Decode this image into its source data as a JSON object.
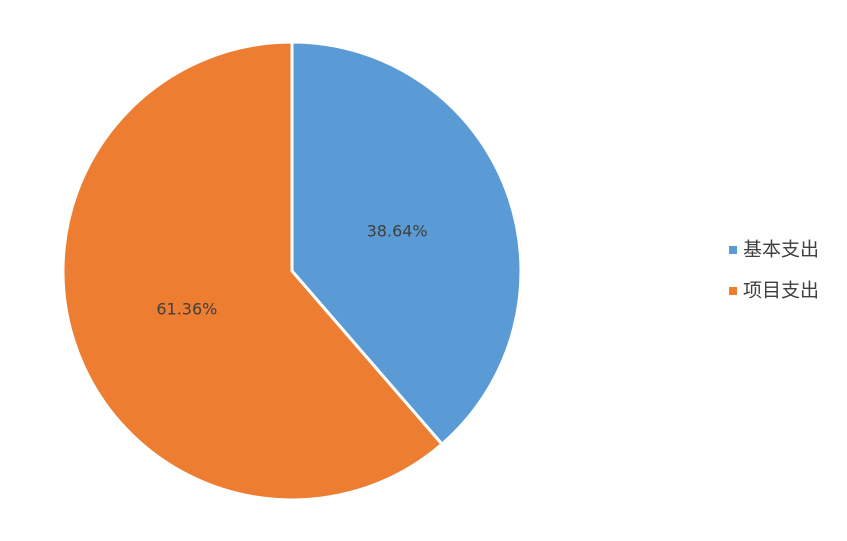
{
  "chart_data": {
    "type": "pie",
    "categories": [
      "基本支出",
      "项目支出"
    ],
    "values": [
      38.64,
      61.36
    ],
    "value_labels": [
      "38.64%",
      "61.36%"
    ],
    "colors": [
      "#5b9bd5",
      "#ed7d31"
    ],
    "legend": "right"
  }
}
